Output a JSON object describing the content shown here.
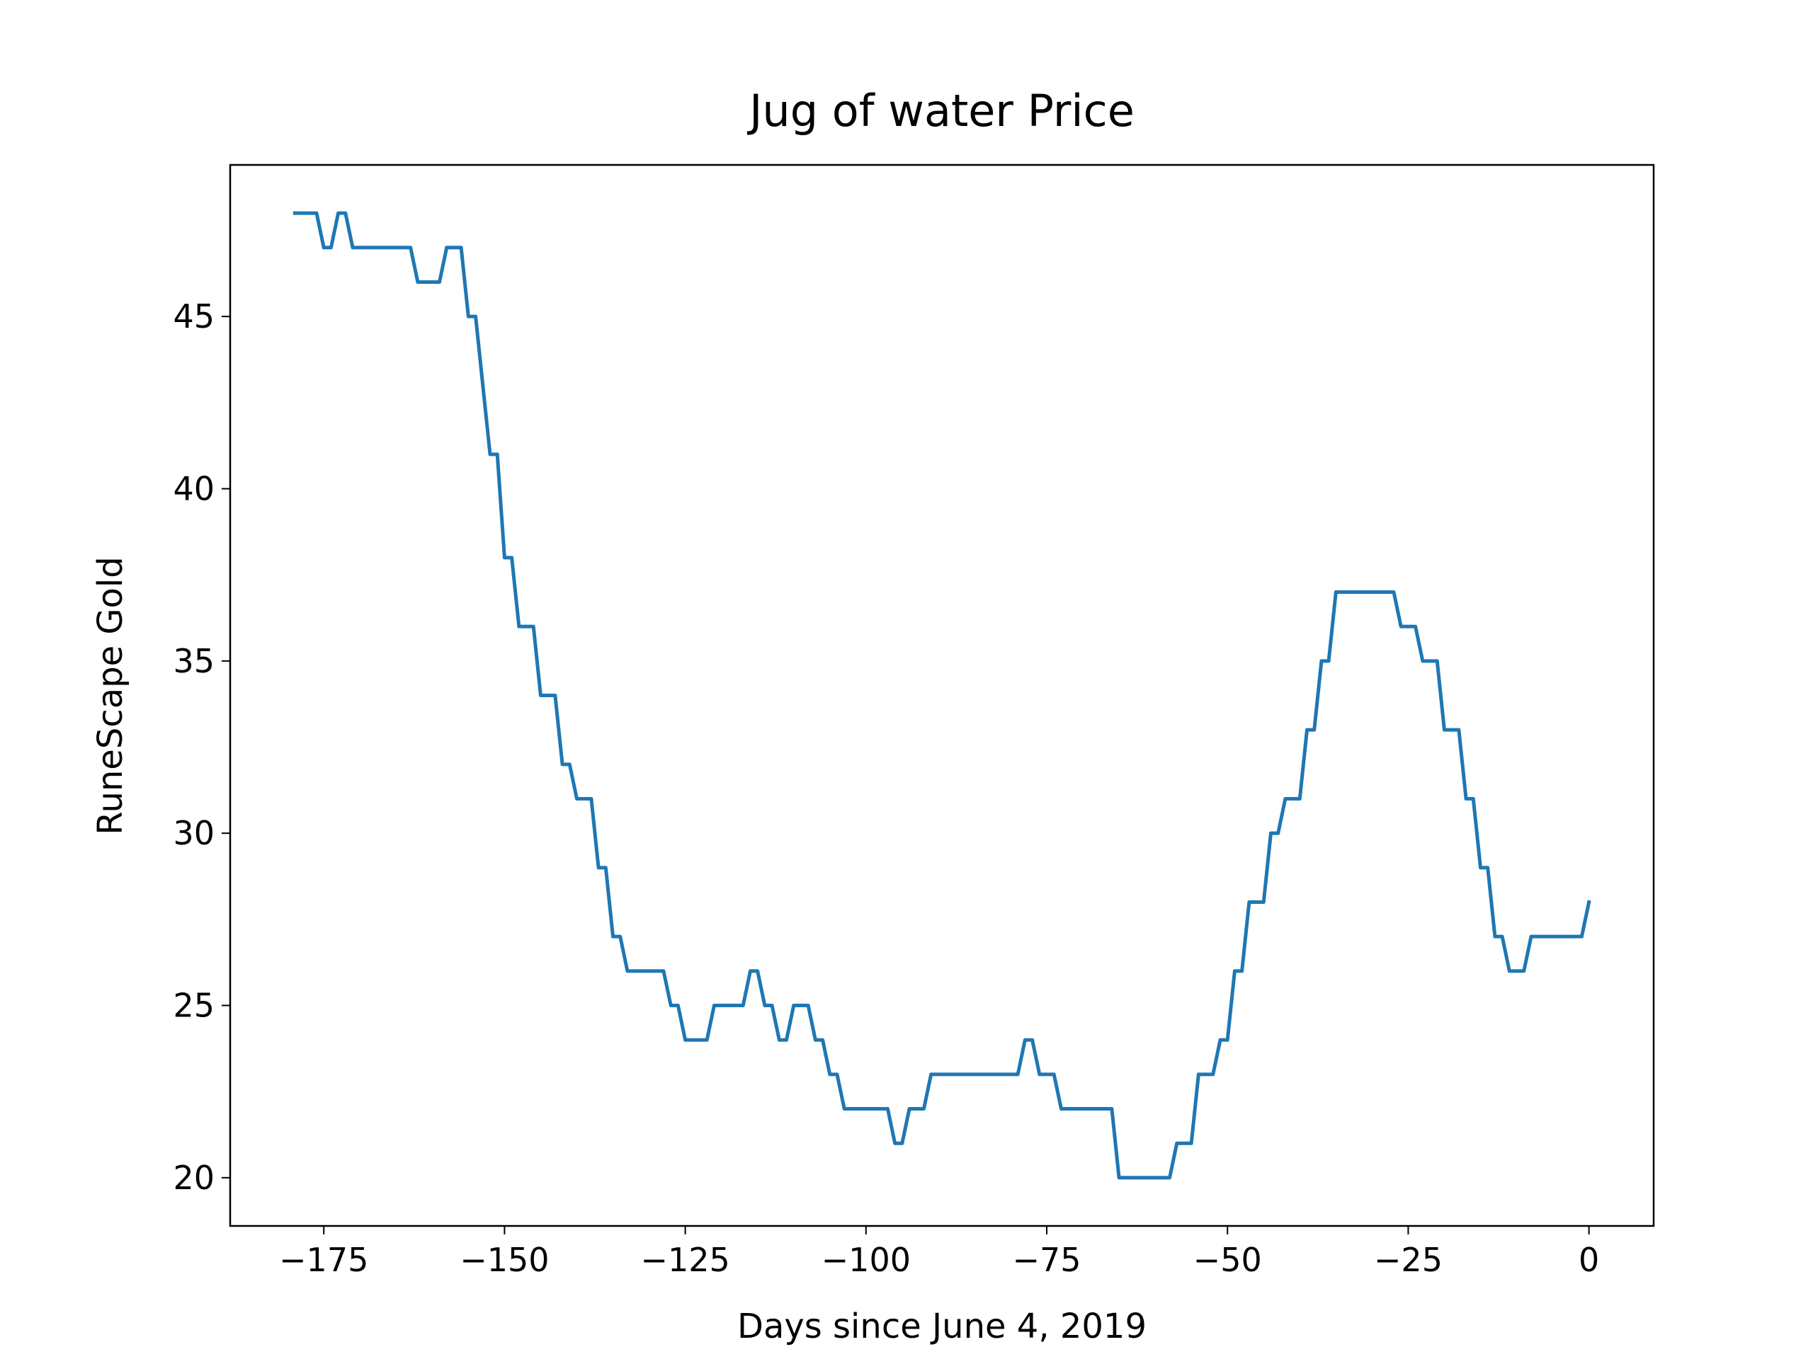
{
  "chart_data": {
    "type": "line",
    "title": "Jug of water Price",
    "x_label": "Days since June 4, 2019",
    "y_label": "RuneScape Gold",
    "x": [
      -179,
      -178,
      -177,
      -176,
      -175,
      -174,
      -173,
      -172,
      -171,
      -170,
      -169,
      -168,
      -167,
      -166,
      -165,
      -164,
      -163,
      -162,
      -161,
      -160,
      -159,
      -158,
      -157,
      -156,
      -155,
      -154,
      -153,
      -152,
      -151,
      -150,
      -149,
      -148,
      -147,
      -146,
      -145,
      -144,
      -143,
      -142,
      -141,
      -140,
      -139,
      -138,
      -137,
      -136,
      -135,
      -134,
      -133,
      -132,
      -131,
      -130,
      -129,
      -128,
      -127,
      -126,
      -125,
      -124,
      -123,
      -122,
      -121,
      -120,
      -119,
      -118,
      -117,
      -116,
      -115,
      -114,
      -113,
      -112,
      -111,
      -110,
      -109,
      -108,
      -107,
      -106,
      -105,
      -104,
      -103,
      -102,
      -101,
      -100,
      -99,
      -98,
      -97,
      -96,
      -95,
      -94,
      -93,
      -92,
      -91,
      -90,
      -89,
      -88,
      -87,
      -86,
      -85,
      -84,
      -83,
      -82,
      -81,
      -80,
      -79,
      -78,
      -77,
      -76,
      -75,
      -74,
      -73,
      -72,
      -71,
      -70,
      -69,
      -68,
      -67,
      -66,
      -65,
      -64,
      -63,
      -62,
      -61,
      -60,
      -59,
      -58,
      -57,
      -56,
      -55,
      -54,
      -53,
      -52,
      -51,
      -50,
      -49,
      -48,
      -47,
      -46,
      -45,
      -44,
      -43,
      -42,
      -41,
      -40,
      -39,
      -38,
      -37,
      -36,
      -35,
      -34,
      -33,
      -32,
      -31,
      -30,
      -29,
      -28,
      -27,
      -26,
      -25,
      -24,
      -23,
      -22,
      -21,
      -20,
      -19,
      -18,
      -17,
      -16,
      -15,
      -14,
      -13,
      -12,
      -11,
      -10,
      -9,
      -8,
      -7,
      -6,
      -5,
      -4,
      -3,
      -2,
      -1,
      0
    ],
    "series": [
      {
        "name": "Jug of water",
        "color": "#1f77b4",
        "values": [
          48,
          48,
          48,
          48,
          47,
          47,
          48,
          48,
          47,
          47,
          47,
          47,
          47,
          47,
          47,
          47,
          47,
          46,
          46,
          46,
          46,
          47,
          47,
          47,
          45,
          45,
          43,
          41,
          41,
          38,
          38,
          36,
          36,
          36,
          34,
          34,
          34,
          32,
          32,
          31,
          31,
          31,
          29,
          29,
          27,
          27,
          26,
          26,
          26,
          26,
          26,
          26,
          25,
          25,
          24,
          24,
          24,
          24,
          25,
          25,
          25,
          25,
          25,
          26,
          26,
          25,
          25,
          24,
          24,
          25,
          25,
          25,
          24,
          24,
          23,
          23,
          22,
          22,
          22,
          22,
          22,
          22,
          22,
          21,
          21,
          22,
          22,
          22,
          23,
          23,
          23,
          23,
          23,
          23,
          23,
          23,
          23,
          23,
          23,
          23,
          23,
          24,
          24,
          23,
          23,
          23,
          22,
          22,
          22,
          22,
          22,
          22,
          22,
          22,
          20,
          20,
          20,
          20,
          20,
          20,
          20,
          20,
          21,
          21,
          21,
          23,
          23,
          23,
          24,
          24,
          26,
          26,
          28,
          28,
          28,
          30,
          30,
          31,
          31,
          31,
          33,
          33,
          35,
          35,
          37,
          37,
          37,
          37,
          37,
          37,
          37,
          37,
          37,
          36,
          36,
          36,
          35,
          35,
          35,
          33,
          33,
          33,
          31,
          31,
          29,
          29,
          27,
          27,
          26,
          26,
          26,
          27,
          27,
          27,
          27,
          27,
          27,
          27,
          27,
          28
        ]
      }
    ],
    "xlim": [
      -187.95,
      8.95
    ],
    "ylim": [
      18.6,
      49.4
    ],
    "xticks": [
      {
        "value": -175,
        "label": "−175"
      },
      {
        "value": -150,
        "label": "−150"
      },
      {
        "value": -125,
        "label": "−125"
      },
      {
        "value": -100,
        "label": "−100"
      },
      {
        "value": -75,
        "label": "−75"
      },
      {
        "value": -50,
        "label": "−50"
      },
      {
        "value": -25,
        "label": "−25"
      },
      0
    ],
    "yticks": [
      20,
      25,
      30,
      35,
      40,
      45
    ],
    "grid": false
  }
}
